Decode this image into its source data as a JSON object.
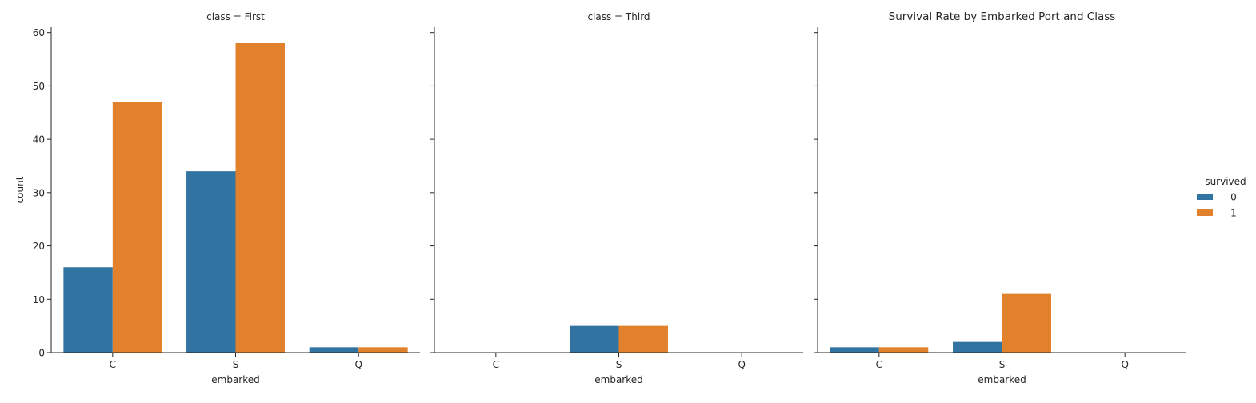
{
  "chart_data": {
    "type": "bar",
    "title": "Survival Rate by Embarked Port and Class",
    "xlabel": "embarked",
    "ylabel": "count",
    "categories": [
      "C",
      "S",
      "Q"
    ],
    "ylim": [
      0,
      61
    ],
    "yticks": [
      0,
      10,
      20,
      30,
      40,
      50,
      60
    ],
    "legend": {
      "title": "survived",
      "placement": "right",
      "entries": [
        "0",
        "1"
      ]
    },
    "colors": {
      "0": "#3274a1",
      "1": "#e1812c"
    },
    "panels": [
      {
        "label": "class = First",
        "series": [
          {
            "name": "0",
            "values": [
              16,
              34,
              1
            ]
          },
          {
            "name": "1",
            "values": [
              47,
              58,
              1
            ]
          }
        ]
      },
      {
        "label": "class = Third",
        "series": [
          {
            "name": "0",
            "values": [
              0,
              5,
              0
            ]
          },
          {
            "name": "1",
            "values": [
              0,
              5,
              0
            ]
          }
        ]
      },
      {
        "label": "",
        "series": [
          {
            "name": "0",
            "values": [
              1,
              2,
              0
            ]
          },
          {
            "name": "1",
            "values": [
              1,
              11,
              0
            ]
          }
        ]
      }
    ]
  }
}
